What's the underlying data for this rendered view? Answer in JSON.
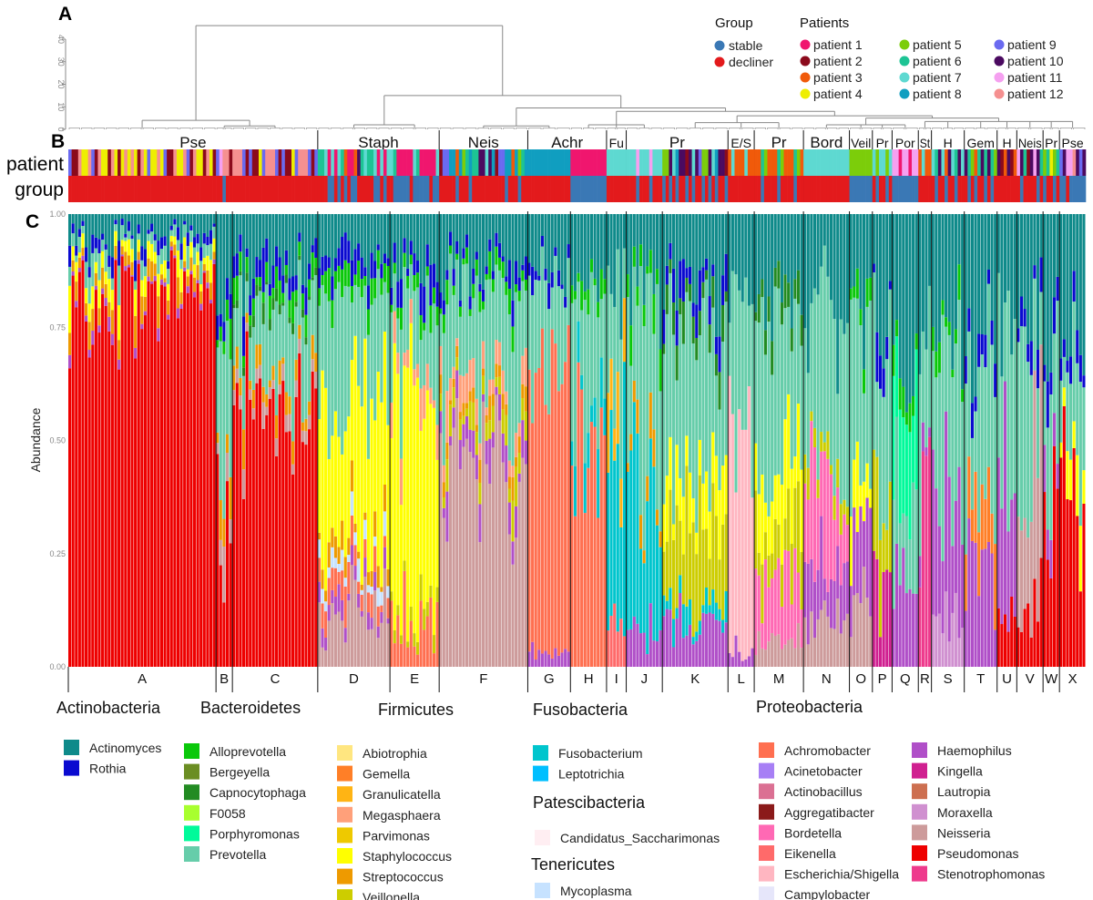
{
  "panels": {
    "a": "A",
    "b": "B",
    "c": "C"
  },
  "row_labels": {
    "patient": "patient",
    "group": "group"
  },
  "group_legend": {
    "title": "Group",
    "items": [
      {
        "label": "stable",
        "color": "#3a78b5"
      },
      {
        "label": "decliner",
        "color": "#e31a1c"
      }
    ]
  },
  "patient_legend": {
    "title": "Patients",
    "items": [
      {
        "id": 1,
        "label": "patient 1",
        "color": "#f0166e"
      },
      {
        "id": 2,
        "label": "patient 2",
        "color": "#8b0a1c"
      },
      {
        "id": 3,
        "label": "patient 3",
        "color": "#f05a0a"
      },
      {
        "id": 4,
        "label": "patient 4",
        "color": "#eeee00"
      },
      {
        "id": 5,
        "label": "patient 5",
        "color": "#7ccd0a"
      },
      {
        "id": 6,
        "label": "patient 6",
        "color": "#1dc494"
      },
      {
        "id": 7,
        "label": "patient 7",
        "color": "#5ed9d1"
      },
      {
        "id": 8,
        "label": "patient 8",
        "color": "#109ec0"
      },
      {
        "id": 9,
        "label": "patient 9",
        "color": "#6a6af0"
      },
      {
        "id": 10,
        "label": "patient 10",
        "color": "#4b0a60"
      },
      {
        "id": 11,
        "label": "patient 11",
        "color": "#f5a0f0"
      },
      {
        "id": 12,
        "label": "patient 12",
        "color": "#f59090"
      }
    ]
  },
  "dendrogram": {
    "y_ticks": [
      "0",
      "10",
      "20",
      "30",
      "40"
    ],
    "ylim": [
      0,
      40
    ],
    "tree": {
      "h": 46,
      "c": [
        {
          "h": 4,
          "c": [
            "A",
            {
              "h": 1.5,
              "c": [
                "B",
                "C"
              ]
            }
          ]
        },
        {
          "h": 15,
          "c": [
            {
              "h": 2,
              "c": [
                "D",
                "E"
              ]
            },
            {
              "h": 9.5,
              "c": [
                {
                  "h": 1.5,
                  "c": [
                    "F",
                    "G"
                  ]
                },
                {
                  "h": 8,
                  "c": [
                    {
                      "h": 2,
                      "c": [
                        "H",
                        "I",
                        "J"
                      ]
                    },
                    {
                      "h": 6,
                      "c": [
                        {
                          "h": 3,
                          "c": [
                            "K",
                            "L",
                            "M"
                          ]
                        },
                        {
                          "h": 5,
                          "c": [
                            {
                              "h": 2,
                              "c": [
                                "N",
                                "O",
                                "P",
                                "Q"
                              ]
                            },
                            {
                              "h": 3.5,
                              "c": [
                                "R",
                                "S",
                                "T",
                                "U",
                                "V",
                                "W",
                                "X"
                              ]
                            }
                          ]
                        }
                      ]
                    }
                  ]
                }
              ]
            }
          ]
        }
      ]
    }
  },
  "strip_labels": [
    {
      "label": "Pse",
      "from": "A",
      "to": "C"
    },
    {
      "label": "Staph",
      "from": "D",
      "to": "E"
    },
    {
      "label": "Neis",
      "from": "F",
      "to": "F"
    },
    {
      "label": "Achr",
      "from": "G",
      "to": "H"
    },
    {
      "label": "Fu",
      "from": "I",
      "to": "I"
    },
    {
      "label": "Pr",
      "from": "J",
      "to": "K"
    },
    {
      "label": "E/S",
      "from": "L",
      "to": "L"
    },
    {
      "label": "Pr",
      "from": "M",
      "to": "M"
    },
    {
      "label": "Bord",
      "from": "N",
      "to": "N"
    },
    {
      "label": "Veil",
      "from": "O",
      "to": "O"
    },
    {
      "label": "Pr",
      "from": "P",
      "to": "P"
    },
    {
      "label": "Por",
      "from": "Q",
      "to": "Q"
    },
    {
      "label": "St",
      "from": "R",
      "to": "R"
    },
    {
      "label": "H",
      "from": "S",
      "to": "S"
    },
    {
      "label": "Gem",
      "from": "T",
      "to": "T"
    },
    {
      "label": "H",
      "from": "U",
      "to": "U"
    },
    {
      "label": "Neis",
      "from": "V",
      "to": "V"
    },
    {
      "label": "Pr",
      "from": "W",
      "to": "W"
    },
    {
      "label": "Pse",
      "from": "X",
      "to": "X"
    }
  ],
  "chart_data": {
    "type": "bar",
    "stacked": true,
    "ylabel": "Abundance",
    "ylim": [
      0,
      1
    ],
    "y_ticks": [
      "0.00",
      "0.25",
      "0.50",
      "0.75",
      "1.00"
    ],
    "genera": [
      {
        "phylum": "Actinobacteria",
        "name": "Actinomyces",
        "color": "#0e8a8a"
      },
      {
        "phylum": "Actinobacteria",
        "name": "Rothia",
        "color": "#0a0ad0"
      },
      {
        "phylum": "Bacteroidetes",
        "name": "Alloprevotella",
        "color": "#0ac80a"
      },
      {
        "phylum": "Bacteroidetes",
        "name": "Bergeyella",
        "color": "#6b8e23"
      },
      {
        "phylum": "Bacteroidetes",
        "name": "Capnocytophaga",
        "color": "#228b22"
      },
      {
        "phylum": "Bacteroidetes",
        "name": "F0058",
        "color": "#a8ff2e"
      },
      {
        "phylum": "Bacteroidetes",
        "name": "Porphyromonas",
        "color": "#00fa9a"
      },
      {
        "phylum": "Bacteroidetes",
        "name": "Prevotella",
        "color": "#66cdaa"
      },
      {
        "phylum": "Firmicutes",
        "name": "Abiotrophia",
        "color": "#ffe680"
      },
      {
        "phylum": "Firmicutes",
        "name": "Gemella",
        "color": "#ff7f27"
      },
      {
        "phylum": "Firmicutes",
        "name": "Granulicatella",
        "color": "#ffb414"
      },
      {
        "phylum": "Firmicutes",
        "name": "Megasphaera",
        "color": "#ffa07a"
      },
      {
        "phylum": "Firmicutes",
        "name": "Parvimonas",
        "color": "#eec900"
      },
      {
        "phylum": "Firmicutes",
        "name": "Staphylococcus",
        "color": "#ffff00"
      },
      {
        "phylum": "Firmicutes",
        "name": "Streptococcus",
        "color": "#ee9a00"
      },
      {
        "phylum": "Firmicutes",
        "name": "Veillonella",
        "color": "#cdcd00"
      },
      {
        "phylum": "Fusobacteria",
        "name": "Fusobacterium",
        "color": "#00c5cd"
      },
      {
        "phylum": "Fusobacteria",
        "name": "Leptotrichia",
        "color": "#00bfff"
      },
      {
        "phylum": "Patescibacteria",
        "name": "Candidatus_Saccharimonas",
        "color": "#ffeef2"
      },
      {
        "phylum": "Tenericutes",
        "name": "Mycoplasma",
        "color": "#c6e2ff"
      },
      {
        "phylum": "Proteobacteria",
        "name": "Achromobacter",
        "color": "#ff6f50"
      },
      {
        "phylum": "Proteobacteria",
        "name": "Acinetobacter",
        "color": "#a77ff5"
      },
      {
        "phylum": "Proteobacteria",
        "name": "Actinobacillus",
        "color": "#db7093"
      },
      {
        "phylum": "Proteobacteria",
        "name": "Aggregatibacter",
        "color": "#8b1a1a"
      },
      {
        "phylum": "Proteobacteria",
        "name": "Bordetella",
        "color": "#ff69b4"
      },
      {
        "phylum": "Proteobacteria",
        "name": "Eikenella",
        "color": "#ff6a6a"
      },
      {
        "phylum": "Proteobacteria",
        "name": "Escherichia/Shigella",
        "color": "#ffb6c1"
      },
      {
        "phylum": "Proteobacteria",
        "name": "Campylobacter",
        "color": "#e6e6fa"
      },
      {
        "phylum": "Proteobacteria",
        "name": "Haemophilus",
        "color": "#b04fc8"
      },
      {
        "phylum": "Proteobacteria",
        "name": "Kingella",
        "color": "#d02090"
      },
      {
        "phylum": "Proteobacteria",
        "name": "Lautropia",
        "color": "#cd6f50"
      },
      {
        "phylum": "Proteobacteria",
        "name": "Moraxella",
        "color": "#d090d0"
      },
      {
        "phylum": "Proteobacteria",
        "name": "Neisseria",
        "color": "#cd9b9b"
      },
      {
        "phylum": "Proteobacteria",
        "name": "Pseudomonas",
        "color": "#ee0000"
      },
      {
        "phylum": "Proteobacteria",
        "name": "Stenotrophomonas",
        "color": "#ee3a8c"
      }
    ],
    "clusters": [
      {
        "label": "A",
        "samples": 45,
        "patients": [
          9,
          2,
          2,
          12,
          4,
          4,
          12,
          9,
          2,
          12,
          4,
          4,
          2,
          12,
          4,
          2,
          4,
          12,
          4,
          12,
          4,
          2,
          12,
          4,
          9,
          4,
          4,
          12,
          4
        ],
        "groups": "d",
        "composition": {
          "Pseudomonas": 0.84,
          "Staphylococcus": 0.03,
          "Streptococcus": 0.03,
          "Prevotella": 0.03,
          "Haemophilus": 0.01,
          "Rothia": 0.02,
          "Actinomyces": 0.04
        }
      },
      {
        "label": "B",
        "samples": 5,
        "patients": [
          9,
          11,
          12,
          12,
          2
        ],
        "groups": "ddsdd",
        "composition": {
          "Pseudomonas": 0.35,
          "Neisseria": 0.08,
          "Streptococcus": 0.05,
          "Prevotella": 0.25,
          "Alloprevotella": 0.05,
          "Rothia": 0.05,
          "Actinomyces": 0.17
        }
      },
      {
        "label": "C",
        "samples": 26,
        "patients": [
          12,
          12,
          12,
          9,
          2,
          9,
          2,
          2,
          4,
          9
        ],
        "groups": "d",
        "composition": {
          "Pseudomonas": 0.52,
          "Neisseria": 0.03,
          "Streptococcus": 0.04,
          "Prevotella": 0.2,
          "Alloprevotella": 0.04,
          "Capnocytophaga": 0.02,
          "Rothia": 0.04,
          "Actinomyces": 0.11
        }
      },
      {
        "label": "D",
        "samples": 22,
        "patients": [
          6,
          6,
          7,
          1,
          7,
          1,
          7,
          6,
          3,
          1,
          1,
          3,
          10,
          6,
          7
        ],
        "groups": "dddssdsdsdssdd",
        "composition": {
          "Mycoplasma": 0.03,
          "Neisseria": 0.12,
          "Achromobacter": 0.05,
          "Haemophilus": 0.03,
          "Staphylococcus": 0.35,
          "Streptococcus": 0.04,
          "Prevotella": 0.2,
          "Alloprevotella": 0.04,
          "Rothia": 0.04,
          "Actinomyces": 0.1
        }
      },
      {
        "label": "E",
        "samples": 15,
        "patients": [
          7,
          6,
          1,
          1,
          1,
          1,
          1
        ],
        "groups": "dsssss",
        "composition": {
          "Achromobacter": 0.1,
          "Megasphaera": 0.05,
          "Staphylococcus": 0.48,
          "Veillonella": 0.03,
          "Prevotella": 0.17,
          "Alloprevotella": 0.03,
          "Rothia": 0.04,
          "Actinomyces": 0.1
        }
      },
      {
        "label": "F",
        "samples": 27,
        "patients": [
          2,
          9,
          9,
          8,
          8,
          3,
          8,
          5,
          6,
          8,
          6,
          6,
          10,
          10,
          7,
          10,
          8
        ],
        "groups": "dddddsdddsddddd",
        "composition": {
          "Neisseria": 0.45,
          "Haemophilus": 0.05,
          "Megasphaera": 0.05,
          "Veillonella": 0.05,
          "Streptococcus": 0.03,
          "Prevotella": 0.2,
          "Alloprevotella": 0.03,
          "Rothia": 0.03,
          "Actinomyces": 0.11
        }
      },
      {
        "label": "G",
        "samples": 13,
        "patients": [
          8,
          8,
          8,
          8
        ],
        "groups": "d",
        "composition": {
          "Achromobacter": 0.6,
          "Haemophilus": 0.04,
          "Prevotella": 0.18,
          "Rothia": 0.03,
          "Actinomyces": 0.15
        }
      },
      {
        "label": "H",
        "samples": 11,
        "patients": [
          1,
          1,
          1,
          1
        ],
        "groups": "s",
        "composition": {
          "Achromobacter": 0.5,
          "Fusobacterium": 0.08,
          "Prevotella": 0.25,
          "Alloprevotella": 0.04,
          "Actinomyces": 0.13
        }
      },
      {
        "label": "I",
        "samples": 6,
        "patients": [
          7
        ],
        "groups": "d",
        "composition": {
          "Eikenella": 0.15,
          "Fusobacterium": 0.35,
          "Granulicatella": 0.12,
          "Prevotella": 0.22,
          "Actinomyces": 0.16
        }
      },
      {
        "label": "J",
        "samples": 11,
        "patients": [
          7,
          7,
          7,
          11
        ],
        "groups": "ddds",
        "composition": {
          "Haemophilus": 0.08,
          "Fusobacterium": 0.28,
          "Streptococcus": 0.05,
          "Prevotella": 0.38,
          "Alloprevotella": 0.05,
          "Actinomyces": 0.16
        }
      },
      {
        "label": "K",
        "samples": 20,
        "patients": [
          5,
          5,
          10,
          7,
          8,
          10,
          10,
          2,
          10,
          7,
          10,
          9
        ],
        "groups": "sdsdsddsdsdd",
        "composition": {
          "Veillonella": 0.2,
          "Haemophilus": 0.1,
          "Staphylococcus": 0.1,
          "Fusobacterium": 0.04,
          "Prevotella": 0.3,
          "Capnocytophaga": 0.05,
          "Rothia": 0.05,
          "Actinomyces": 0.16
        }
      },
      {
        "label": "L",
        "samples": 8,
        "patients": [
          3,
          7,
          3,
          3
        ],
        "groups": "d",
        "composition": {
          "Escherichia/Shigella": 0.5,
          "Haemophilus": 0.04,
          "Prevotella": 0.3,
          "Actinomyces": 0.16
        }
      },
      {
        "label": "M",
        "samples": 15,
        "patients": [
          3,
          3,
          6,
          5,
          3
        ],
        "groups": "ddsdd",
        "composition": {
          "Bordetella": 0.15,
          "Neisseria": 0.05,
          "Staphylococcus": 0.15,
          "Veillonella": 0.1,
          "Prevotella": 0.3,
          "Capnocytophaga": 0.05,
          "Actinomyces": 0.2
        }
      },
      {
        "label": "N",
        "samples": 14,
        "patients": [
          7
        ],
        "groups": "d",
        "composition": {
          "Bordetella": 0.25,
          "Neisseria": 0.1,
          "Haemophilus": 0.1,
          "Veillonella": 0.05,
          "Prevotella": 0.3,
          "Actinomyces": 0.2
        }
      },
      {
        "label": "O",
        "samples": 7,
        "patients": [
          5
        ],
        "groups": "s",
        "composition": {
          "Neisseria": 0.15,
          "Haemophilus": 0.2,
          "Staphylococcus": 0.1,
          "Prevotella": 0.3,
          "Alloprevotella": 0.05,
          "Actinomyces": 0.2
        }
      },
      {
        "label": "P",
        "samples": 6,
        "patients": [
          7,
          5,
          7
        ],
        "groups": "dsd",
        "composition": {
          "Kingella": 0.2,
          "Veillonella": 0.2,
          "Prevotella": 0.3,
          "Rothia": 0.05,
          "Actinomyces": 0.25
        }
      },
      {
        "label": "Q",
        "samples": 8,
        "patients": [
          11,
          11,
          1
        ],
        "groups": "s",
        "composition": {
          "Haemophilus": 0.2,
          "Porphyromonas": 0.25,
          "Prevotella": 0.2,
          "Alloprevotella": 0.05,
          "Actinomyces": 0.3
        }
      },
      {
        "label": "R",
        "samples": 4,
        "patients": [
          3,
          7,
          3
        ],
        "groups": "d",
        "composition": {
          "Stenotrophomonas": 0.4,
          "Haemophilus": 0.05,
          "Prevotella": 0.3,
          "Actinomyces": 0.25
        }
      },
      {
        "label": "S",
        "samples": 10,
        "patients": [
          7,
          6,
          10,
          7,
          3,
          10
        ],
        "groups": "dsddsd",
        "composition": {
          "Haemophilus": 0.3,
          "Moraxella": 0.1,
          "Prevotella": 0.3,
          "Alloprevotella": 0.05,
          "Actinomyces": 0.25
        }
      },
      {
        "label": "T",
        "samples": 10,
        "patients": [
          10,
          6,
          5,
          3,
          6,
          10,
          6
        ],
        "groups": "dsdsdds",
        "composition": {
          "Haemophilus": 0.2,
          "Gemella": 0.15,
          "Prevotella": 0.3,
          "Rothia": 0.05,
          "Actinomyces": 0.3
        }
      },
      {
        "label": "U",
        "samples": 6,
        "patients": [
          10,
          2,
          3
        ],
        "groups": "d",
        "composition": {
          "Haemophilus": 0.3,
          "Pseudomonas": 0.1,
          "Prevotella": 0.3,
          "Actinomyces": 0.3
        }
      },
      {
        "label": "V",
        "samples": 8,
        "patients": [
          11,
          10,
          6,
          2,
          10
        ],
        "groups": "dsddd",
        "composition": {
          "Neisseria": 0.3,
          "Pseudomonas": 0.15,
          "Prevotella": 0.3,
          "Rothia": 0.05,
          "Actinomyces": 0.2
        }
      },
      {
        "label": "W",
        "samples": 5,
        "patients": [
          5,
          6,
          4
        ],
        "groups": "sdd",
        "composition": {
          "Pseudomonas": 0.3,
          "Haemophilus": 0.1,
          "Prevotella": 0.3,
          "Rothia": 0.05,
          "Actinomyces": 0.25
        }
      },
      {
        "label": "X",
        "samples": 8,
        "patients": [
          9,
          10,
          11,
          11,
          12,
          10
        ],
        "groups": "ssdsss",
        "composition": {
          "Pseudomonas": 0.4,
          "Staphylococcus": 0.1,
          "Prevotella": 0.2,
          "Rothia": 0.05,
          "Actinomyces": 0.25
        }
      }
    ]
  }
}
